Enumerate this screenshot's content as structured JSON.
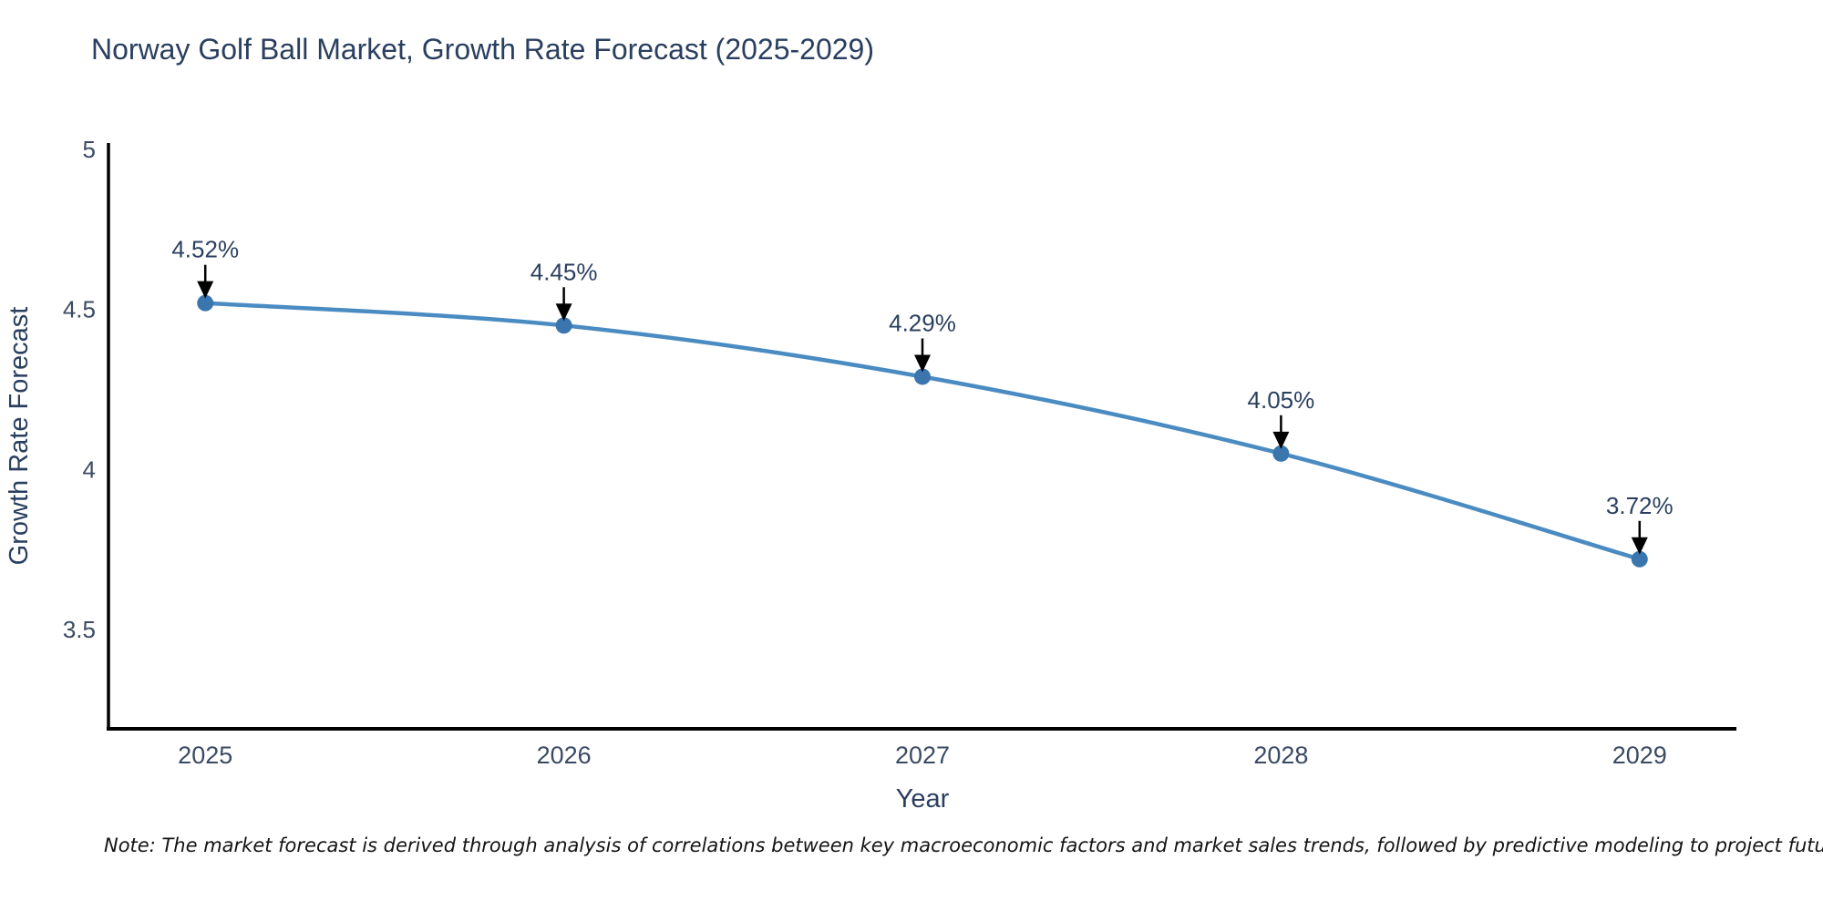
{
  "chart_data": {
    "type": "line",
    "title": "Norway Golf Ball Market, Growth Rate Forecast (2025-2029)",
    "x": [
      2025,
      2026,
      2027,
      2028,
      2029
    ],
    "values": [
      4.52,
      4.45,
      4.29,
      4.05,
      3.72
    ],
    "point_labels": [
      "4.52%",
      "4.45%",
      "4.29%",
      "4.05%",
      "3.72%"
    ],
    "xlabel": "Year",
    "ylabel": "Growth Rate Forecast",
    "xtick_labels": [
      "2025",
      "2026",
      "2027",
      "2028",
      "2029"
    ],
    "yticks": [
      5,
      4.5,
      4,
      3.5
    ],
    "ytick_labels": [
      "5",
      "4.5",
      "4",
      "3.5"
    ],
    "xlim": [
      2024.73,
      2029.27
    ],
    "ylim": [
      3.19,
      5.02
    ],
    "grid": false,
    "legend_position": "none",
    "line_color": "#4a8bc2",
    "marker_color": "#3a76ad",
    "axis_color": "#000000",
    "annotation_arrow_color": "#000000",
    "title_color": "#2a3f5f",
    "tick_color": "#3b4a63"
  },
  "note": {
    "text": "Note: The market forecast is derived through analysis of correlations between key macroeconomic factors and market sales trends, followed by predictive modeling to project future sales"
  }
}
